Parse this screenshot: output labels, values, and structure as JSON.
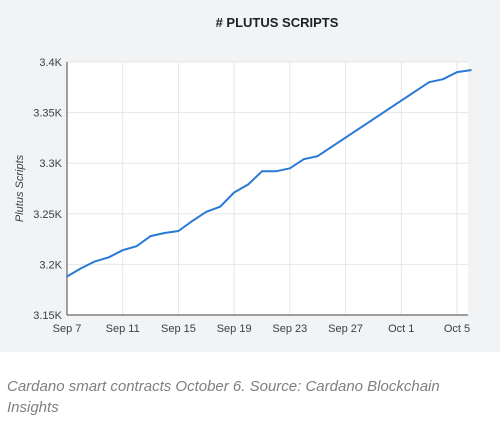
{
  "chart_data": {
    "type": "line",
    "title": "# PLUTUS SCRIPTS",
    "xlabel": "",
    "ylabel": "Plutus Scripts",
    "x_ticks": [
      "Sep 7",
      "Sep 11",
      "Sep 15",
      "Sep 19",
      "Sep 23",
      "Sep 27",
      "Oct 1",
      "Oct 5"
    ],
    "y_ticks": [
      "3.15K",
      "3.2K",
      "3.25K",
      "3.3K",
      "3.35K",
      "3.4K"
    ],
    "ylim": [
      3150,
      3400
    ],
    "xlim": [
      "2022-09-07",
      "2022-10-05"
    ],
    "grid": true,
    "line_color": "#2979d6",
    "series": [
      {
        "x": [
          "2022-09-07",
          "2022-09-08",
          "2022-09-09",
          "2022-09-10",
          "2022-09-11",
          "2022-09-12",
          "2022-09-13",
          "2022-09-14",
          "2022-09-15",
          "2022-09-16",
          "2022-09-17",
          "2022-09-18",
          "2022-09-19",
          "2022-09-20",
          "2022-09-21",
          "2022-09-22",
          "2022-09-23",
          "2022-09-24",
          "2022-09-25",
          "2022-10-03",
          "2022-10-04",
          "2022-10-05",
          "2022-10-06"
        ],
        "values": [
          3188,
          3196,
          3203,
          3207,
          3214,
          3218,
          3228,
          3231,
          3233,
          3243,
          3252,
          3257,
          3271,
          3279,
          3292,
          3292,
          3295,
          3304,
          3307,
          3380,
          3383,
          3390,
          3392
        ]
      }
    ]
  },
  "caption": "Cardano smart contracts October 6. Source: Cardano Blockchain Insights"
}
